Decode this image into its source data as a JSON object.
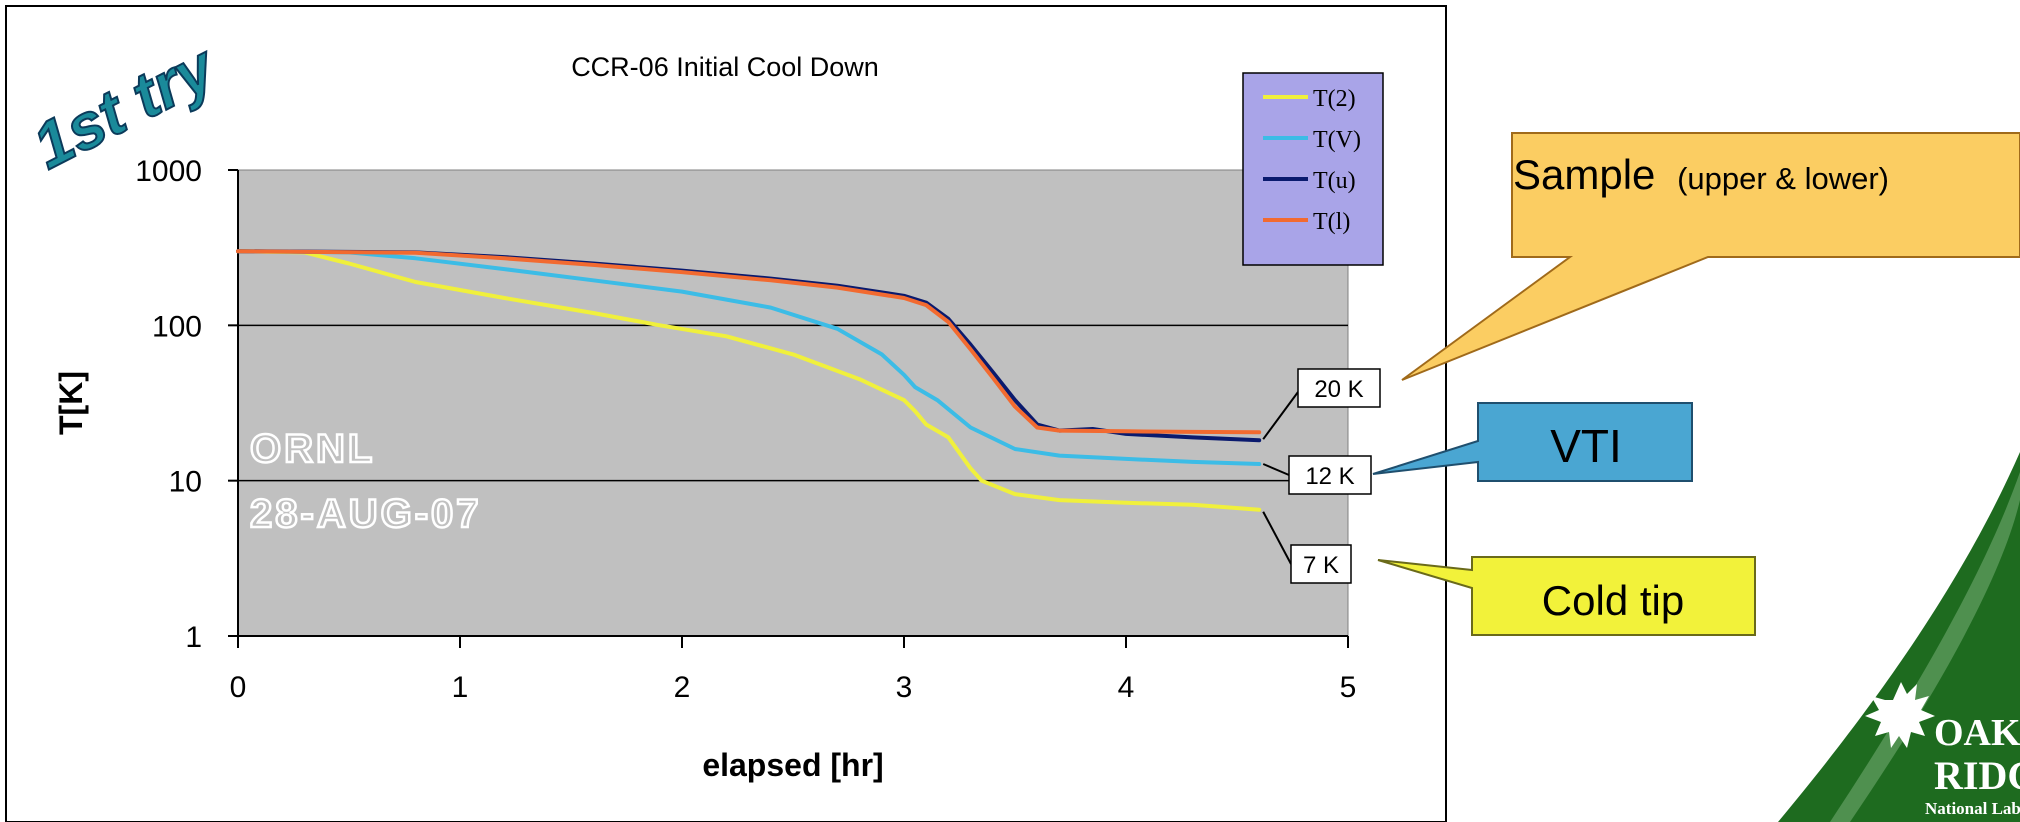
{
  "slide": {
    "try_label": "1st try",
    "watermark_lines": [
      "ORNL",
      "28-AUG-07"
    ],
    "logo": {
      "text_main": "OAK RIDGE",
      "text_sub": "National Laboratory",
      "color": "#1e6b1f"
    }
  },
  "callouts": {
    "sample": {
      "title": "Sample",
      "subtitle": "(upper & lower)",
      "color": "#fbcd62"
    },
    "vti": {
      "title": "VTI",
      "color": "#4aa6d2"
    },
    "cold_tip": {
      "title": "Cold tip",
      "color": "#f2f23a"
    }
  },
  "chart_data": {
    "type": "line",
    "title": "CCR-06 Initial Cool Down",
    "xlabel": "elapsed [hr]",
    "ylabel": "T[K]",
    "xlim": [
      0,
      5
    ],
    "ylim": [
      1,
      1000
    ],
    "yscale": "log",
    "x_ticks": [
      0,
      1,
      2,
      3,
      4,
      5
    ],
    "y_ticks": [
      1,
      10,
      100,
      1000
    ],
    "grid": "horizontal",
    "plot_background": "#c0c0c0",
    "legend_position": "top-right",
    "series": [
      {
        "name": "T(2)",
        "color": "#f0f03c",
        "points": [
          [
            0,
            300
          ],
          [
            0.3,
            295
          ],
          [
            0.5,
            250
          ],
          [
            0.8,
            190
          ],
          [
            1.2,
            150
          ],
          [
            1.6,
            120
          ],
          [
            1.9,
            100
          ],
          [
            2.2,
            85
          ],
          [
            2.5,
            65
          ],
          [
            2.8,
            45
          ],
          [
            3.0,
            33
          ],
          [
            3.05,
            28
          ],
          [
            3.1,
            23
          ],
          [
            3.2,
            19
          ],
          [
            3.3,
            12
          ],
          [
            3.35,
            10
          ],
          [
            3.5,
            8.2
          ],
          [
            3.7,
            7.5
          ],
          [
            4.0,
            7.2
          ],
          [
            4.3,
            7.0
          ],
          [
            4.6,
            6.5
          ]
        ]
      },
      {
        "name": "T(V)",
        "color": "#3cbce6",
        "points": [
          [
            0,
            300
          ],
          [
            0.5,
            295
          ],
          [
            0.8,
            270
          ],
          [
            1.2,
            230
          ],
          [
            1.6,
            195
          ],
          [
            2.0,
            165
          ],
          [
            2.4,
            130
          ],
          [
            2.7,
            95
          ],
          [
            2.9,
            65
          ],
          [
            3.0,
            48
          ],
          [
            3.05,
            40
          ],
          [
            3.15,
            33
          ],
          [
            3.3,
            22
          ],
          [
            3.5,
            16
          ],
          [
            3.7,
            14.5
          ],
          [
            4.0,
            13.8
          ],
          [
            4.3,
            13.2
          ],
          [
            4.6,
            12.8
          ]
        ]
      },
      {
        "name": "T(u)",
        "color": "#0a1a6e",
        "points": [
          [
            0,
            300
          ],
          [
            0.8,
            295
          ],
          [
            1.2,
            275
          ],
          [
            1.6,
            250
          ],
          [
            2.0,
            225
          ],
          [
            2.4,
            200
          ],
          [
            2.7,
            180
          ],
          [
            3.0,
            155
          ],
          [
            3.1,
            140
          ],
          [
            3.2,
            110
          ],
          [
            3.3,
            75
          ],
          [
            3.4,
            50
          ],
          [
            3.5,
            33
          ],
          [
            3.6,
            23
          ],
          [
            3.7,
            21
          ],
          [
            3.85,
            21.5
          ],
          [
            4.0,
            20
          ],
          [
            4.3,
            19
          ],
          [
            4.6,
            18.2
          ]
        ]
      },
      {
        "name": "T(l)",
        "color": "#f26a30",
        "points": [
          [
            0,
            300
          ],
          [
            0.8,
            293
          ],
          [
            1.2,
            270
          ],
          [
            1.6,
            245
          ],
          [
            2.0,
            220
          ],
          [
            2.4,
            195
          ],
          [
            2.7,
            175
          ],
          [
            3.0,
            150
          ],
          [
            3.1,
            135
          ],
          [
            3.2,
            105
          ],
          [
            3.3,
            70
          ],
          [
            3.4,
            46
          ],
          [
            3.5,
            30
          ],
          [
            3.6,
            22
          ],
          [
            3.7,
            21
          ],
          [
            4.0,
            20.8
          ],
          [
            4.3,
            20.6
          ],
          [
            4.6,
            20.5
          ]
        ]
      }
    ],
    "annotations": [
      {
        "text": "20 K",
        "target": [
          4.6,
          18.5
        ]
      },
      {
        "text": "12 K",
        "target": [
          4.6,
          12.8
        ]
      },
      {
        "text": "7 K",
        "target": [
          4.6,
          6.5
        ]
      }
    ]
  }
}
